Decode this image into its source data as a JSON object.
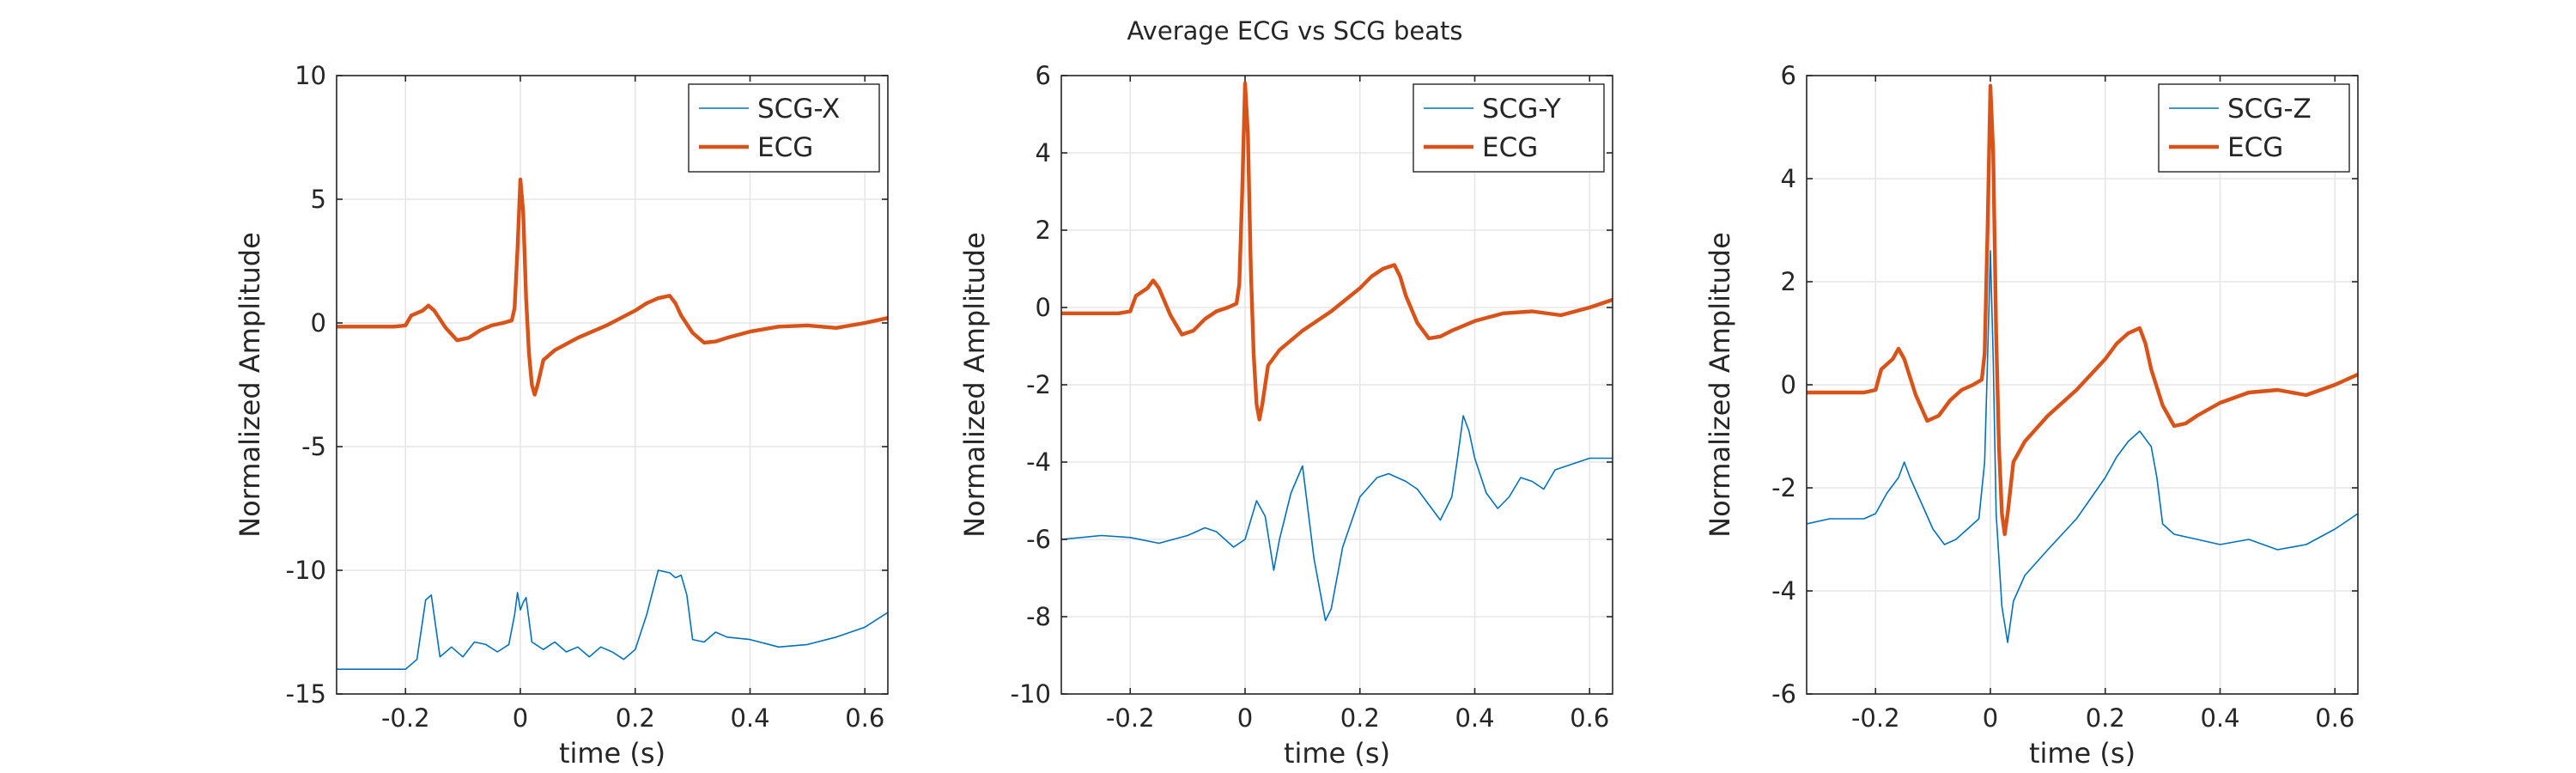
{
  "figure": {
    "title": "Average ECG vs SCG beats"
  },
  "colors": {
    "scg": "#0072BD",
    "ecg": "#D95319"
  },
  "chart_data": [
    {
      "type": "line",
      "xlabel": "time (s)",
      "ylabel": "Normalized Amplitude",
      "xlim": [
        -0.32,
        0.64
      ],
      "ylim": [
        -15,
        10
      ],
      "xticks": [
        -0.2,
        0,
        0.2,
        0.4,
        0.6
      ],
      "xtick_labels": [
        "-0.2",
        "0",
        "0.2",
        "0.4",
        "0.6"
      ],
      "yticks": [
        -15,
        -10,
        -5,
        0,
        5,
        10
      ],
      "ytick_labels": [
        "-15",
        "-10",
        "-5",
        "0",
        "5",
        "10"
      ],
      "grid": true,
      "legend_position": "top-right",
      "series": [
        {
          "name": "SCG-X",
          "x": [
            -0.32,
            -0.2,
            -0.18,
            -0.165,
            -0.155,
            -0.14,
            -0.12,
            -0.1,
            -0.08,
            -0.06,
            -0.04,
            -0.02,
            -0.01,
            -0.005,
            0.0,
            0.005,
            0.01,
            0.02,
            0.04,
            0.06,
            0.08,
            0.1,
            0.12,
            0.14,
            0.16,
            0.18,
            0.2,
            0.22,
            0.23,
            0.24,
            0.26,
            0.27,
            0.28,
            0.29,
            0.3,
            0.32,
            0.34,
            0.36,
            0.4,
            0.45,
            0.5,
            0.55,
            0.6,
            0.64
          ],
          "y": [
            -14.0,
            -14.0,
            -13.6,
            -11.2,
            -11.0,
            -13.5,
            -13.1,
            -13.5,
            -12.9,
            -13.0,
            -13.3,
            -13.0,
            -11.8,
            -10.9,
            -11.6,
            -11.3,
            -11.1,
            -12.9,
            -13.2,
            -12.9,
            -13.3,
            -13.1,
            -13.5,
            -13.1,
            -13.3,
            -13.6,
            -13.2,
            -11.8,
            -10.9,
            -10.0,
            -10.1,
            -10.3,
            -10.2,
            -11.0,
            -12.8,
            -12.9,
            -12.5,
            -12.7,
            -12.8,
            -13.1,
            -13.0,
            -12.7,
            -12.3,
            -11.7
          ]
        },
        {
          "name": "ECG",
          "x": [
            -0.32,
            -0.22,
            -0.2,
            -0.19,
            -0.17,
            -0.16,
            -0.15,
            -0.13,
            -0.11,
            -0.09,
            -0.07,
            -0.05,
            -0.03,
            -0.015,
            -0.01,
            -0.005,
            0.0,
            0.005,
            0.01,
            0.015,
            0.02,
            0.025,
            0.03,
            0.04,
            0.06,
            0.1,
            0.15,
            0.2,
            0.22,
            0.24,
            0.26,
            0.27,
            0.28,
            0.3,
            0.32,
            0.34,
            0.36,
            0.4,
            0.45,
            0.5,
            0.55,
            0.6,
            0.64
          ],
          "y": [
            -0.15,
            -0.15,
            -0.1,
            0.3,
            0.5,
            0.7,
            0.5,
            -0.2,
            -0.7,
            -0.6,
            -0.3,
            -0.1,
            0.0,
            0.1,
            0.6,
            3.0,
            5.8,
            4.5,
            1.0,
            -1.2,
            -2.5,
            -2.9,
            -2.5,
            -1.5,
            -1.1,
            -0.6,
            -0.1,
            0.5,
            0.8,
            1.0,
            1.1,
            0.8,
            0.3,
            -0.4,
            -0.8,
            -0.75,
            -0.6,
            -0.35,
            -0.15,
            -0.1,
            -0.2,
            0.0,
            0.2
          ]
        }
      ]
    },
    {
      "type": "line",
      "xlabel": "time (s)",
      "ylabel": "Normalized Amplitude",
      "xlim": [
        -0.32,
        0.64
      ],
      "ylim": [
        -10,
        6
      ],
      "xticks": [
        -0.2,
        0,
        0.2,
        0.4,
        0.6
      ],
      "xtick_labels": [
        "-0.2",
        "0",
        "0.2",
        "0.4",
        "0.6"
      ],
      "yticks": [
        -10,
        -8,
        -6,
        -4,
        -2,
        0,
        2,
        4,
        6
      ],
      "ytick_labels": [
        "-10",
        "-8",
        "-6",
        "-4",
        "-2",
        "0",
        "2",
        "4",
        "6"
      ],
      "grid": true,
      "legend_position": "top-right",
      "series": [
        {
          "name": "SCG-Y",
          "x": [
            -0.32,
            -0.25,
            -0.2,
            -0.15,
            -0.1,
            -0.07,
            -0.05,
            -0.02,
            0.0,
            0.02,
            0.035,
            0.05,
            0.06,
            0.08,
            0.1,
            0.12,
            0.14,
            0.15,
            0.17,
            0.2,
            0.23,
            0.25,
            0.28,
            0.3,
            0.32,
            0.34,
            0.36,
            0.37,
            0.38,
            0.39,
            0.4,
            0.42,
            0.44,
            0.46,
            0.48,
            0.5,
            0.52,
            0.54,
            0.58,
            0.6,
            0.64
          ],
          "y": [
            -6.0,
            -5.9,
            -5.95,
            -6.1,
            -5.9,
            -5.7,
            -5.8,
            -6.2,
            -6.0,
            -5.0,
            -5.4,
            -6.8,
            -6.0,
            -4.8,
            -4.1,
            -6.5,
            -8.1,
            -7.8,
            -6.2,
            -4.9,
            -4.4,
            -4.3,
            -4.5,
            -4.7,
            -5.1,
            -5.5,
            -4.9,
            -3.9,
            -2.8,
            -3.2,
            -3.9,
            -4.8,
            -5.2,
            -4.9,
            -4.4,
            -4.5,
            -4.7,
            -4.2,
            -4.0,
            -3.9,
            -3.9
          ]
        },
        {
          "name": "ECG",
          "x": [
            -0.32,
            -0.22,
            -0.2,
            -0.19,
            -0.17,
            -0.16,
            -0.15,
            -0.13,
            -0.11,
            -0.09,
            -0.07,
            -0.05,
            -0.03,
            -0.015,
            -0.01,
            -0.005,
            0.0,
            0.005,
            0.01,
            0.015,
            0.02,
            0.025,
            0.03,
            0.04,
            0.06,
            0.1,
            0.15,
            0.2,
            0.22,
            0.24,
            0.26,
            0.27,
            0.28,
            0.3,
            0.32,
            0.34,
            0.36,
            0.4,
            0.45,
            0.5,
            0.55,
            0.6,
            0.64
          ],
          "y": [
            -0.15,
            -0.15,
            -0.1,
            0.3,
            0.5,
            0.7,
            0.5,
            -0.2,
            -0.7,
            -0.6,
            -0.3,
            -0.1,
            0.0,
            0.1,
            0.6,
            3.0,
            5.8,
            4.5,
            1.0,
            -1.2,
            -2.5,
            -2.9,
            -2.5,
            -1.5,
            -1.1,
            -0.6,
            -0.1,
            0.5,
            0.8,
            1.0,
            1.1,
            0.8,
            0.3,
            -0.4,
            -0.8,
            -0.75,
            -0.6,
            -0.35,
            -0.15,
            -0.1,
            -0.2,
            0.0,
            0.2
          ]
        }
      ]
    },
    {
      "type": "line",
      "xlabel": "time (s)",
      "ylabel": "Normalized Amplitude",
      "xlim": [
        -0.32,
        0.64
      ],
      "ylim": [
        -6,
        6
      ],
      "xticks": [
        -0.2,
        0,
        0.2,
        0.4,
        0.6
      ],
      "xtick_labels": [
        "-0.2",
        "0",
        "0.2",
        "0.4",
        "0.6"
      ],
      "yticks": [
        -6,
        -4,
        -2,
        0,
        2,
        4,
        6
      ],
      "ytick_labels": [
        "-6",
        "-4",
        "-2",
        "0",
        "2",
        "4",
        "6"
      ],
      "grid": true,
      "legend_position": "top-right",
      "series": [
        {
          "name": "SCG-Z",
          "x": [
            -0.32,
            -0.28,
            -0.25,
            -0.22,
            -0.2,
            -0.18,
            -0.16,
            -0.15,
            -0.14,
            -0.12,
            -0.1,
            -0.08,
            -0.06,
            -0.04,
            -0.02,
            -0.01,
            -0.005,
            0.0,
            0.005,
            0.01,
            0.02,
            0.03,
            0.04,
            0.06,
            0.1,
            0.15,
            0.2,
            0.22,
            0.24,
            0.26,
            0.28,
            0.29,
            0.3,
            0.32,
            0.36,
            0.4,
            0.45,
            0.5,
            0.55,
            0.6,
            0.64
          ],
          "y": [
            -2.7,
            -2.6,
            -2.6,
            -2.6,
            -2.5,
            -2.1,
            -1.8,
            -1.5,
            -1.8,
            -2.3,
            -2.8,
            -3.1,
            -3.0,
            -2.8,
            -2.6,
            -1.5,
            0.5,
            2.6,
            0.5,
            -2.5,
            -4.3,
            -5.0,
            -4.2,
            -3.7,
            -3.2,
            -2.6,
            -1.8,
            -1.4,
            -1.1,
            -0.9,
            -1.2,
            -1.8,
            -2.7,
            -2.9,
            -3.0,
            -3.1,
            -3.0,
            -3.2,
            -3.1,
            -2.8,
            -2.5
          ]
        },
        {
          "name": "ECG",
          "x": [
            -0.32,
            -0.22,
            -0.2,
            -0.19,
            -0.17,
            -0.16,
            -0.15,
            -0.13,
            -0.11,
            -0.09,
            -0.07,
            -0.05,
            -0.03,
            -0.015,
            -0.01,
            -0.005,
            0.0,
            0.005,
            0.01,
            0.015,
            0.02,
            0.025,
            0.03,
            0.04,
            0.06,
            0.1,
            0.15,
            0.2,
            0.22,
            0.24,
            0.26,
            0.27,
            0.28,
            0.3,
            0.32,
            0.34,
            0.36,
            0.4,
            0.45,
            0.5,
            0.55,
            0.6,
            0.64
          ],
          "y": [
            -0.15,
            -0.15,
            -0.1,
            0.3,
            0.5,
            0.7,
            0.5,
            -0.2,
            -0.7,
            -0.6,
            -0.3,
            -0.1,
            0.0,
            0.1,
            0.6,
            3.0,
            5.8,
            4.5,
            1.0,
            -1.2,
            -2.5,
            -2.9,
            -2.5,
            -1.5,
            -1.1,
            -0.6,
            -0.1,
            0.5,
            0.8,
            1.0,
            1.1,
            0.8,
            0.3,
            -0.4,
            -0.8,
            -0.75,
            -0.6,
            -0.35,
            -0.15,
            -0.1,
            -0.2,
            0.0,
            0.2
          ]
        }
      ]
    }
  ]
}
